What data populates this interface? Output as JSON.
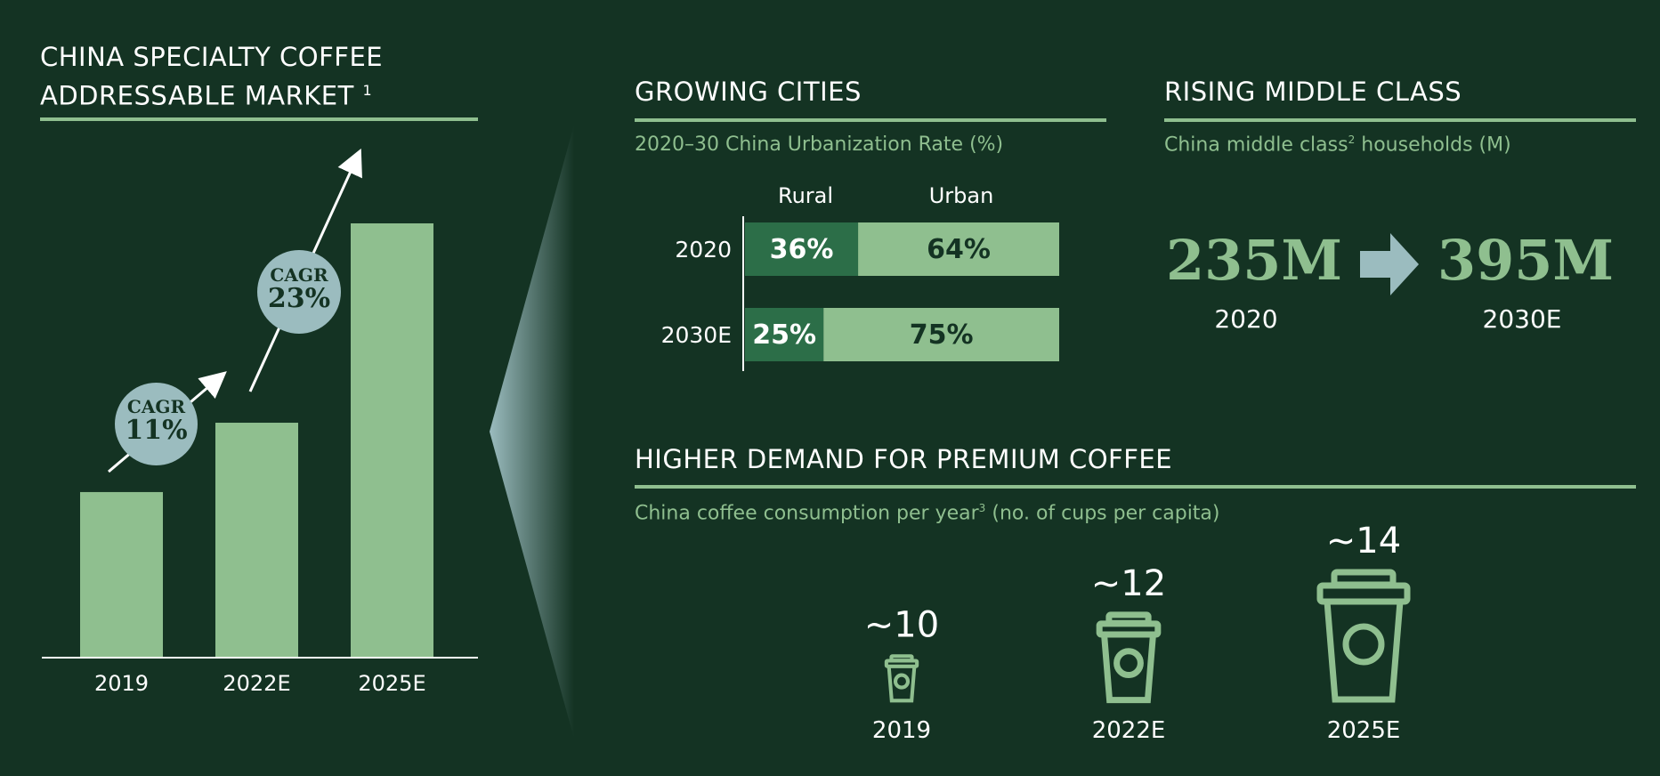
{
  "colors": {
    "background": "#143323",
    "accent_green": "#8fbf8f",
    "dark_green": "#2c6e48",
    "cagr_bubble": "#9bbcbf",
    "text": "#ffffff"
  },
  "left": {
    "title_line1": "CHINA SPECIALTY COFFEE",
    "title_line2": "ADDRESSABLE MARKET",
    "title_sup": "1",
    "cagr1_label": "CAGR",
    "cagr1_value": "11%",
    "cagr2_label": "CAGR",
    "cagr2_value": "23%"
  },
  "cities": {
    "title": "GROWING CITIES",
    "subtitle": "2020–30 China Urbanization Rate (%)",
    "col_rural": "Rural",
    "col_urban": "Urban"
  },
  "middle_class": {
    "title": "RISING MIDDLE CLASS",
    "subtitle_pre": "China middle class",
    "subtitle_sup": "2",
    "subtitle_post": " households (M)",
    "value_2020": "235M",
    "year_2020": "2020",
    "value_2030": "395M",
    "year_2030": "2030E",
    "arrow_icon": "right-arrow-icon"
  },
  "demand": {
    "title": "HIGHER DEMAND FOR PREMIUM COFFEE",
    "subtitle_pre": "China coffee consumption per year",
    "subtitle_sup": "3",
    "subtitle_post": " (no. of cups per capita)",
    "cup_icon": "coffee-cup-icon"
  },
  "chart_data": [
    {
      "type": "bar",
      "title": "CHINA SPECIALTY COFFEE ADDRESSABLE MARKET 1",
      "categories": [
        "2019",
        "2022E",
        "2025E"
      ],
      "values": [
        38,
        54,
        100
      ],
      "annotations": [
        "CAGR 11%",
        "CAGR 23%"
      ]
    },
    {
      "type": "bar",
      "title": "2020–30 China Urbanization Rate (%)",
      "categories": [
        "2020",
        "2030E"
      ],
      "series": [
        {
          "name": "Rural",
          "values": [
            36,
            25
          ],
          "labels": [
            "36%",
            "25%"
          ]
        },
        {
          "name": "Urban",
          "values": [
            64,
            75
          ],
          "labels": [
            "64%",
            "75%"
          ]
        }
      ]
    },
    {
      "type": "bar",
      "title": "China coffee consumption per year (no. of cups per capita)",
      "categories": [
        "2019",
        "2022E",
        "2025E"
      ],
      "values": [
        10,
        12,
        14
      ],
      "labels": [
        "~10",
        "~12",
        "~14"
      ]
    }
  ]
}
